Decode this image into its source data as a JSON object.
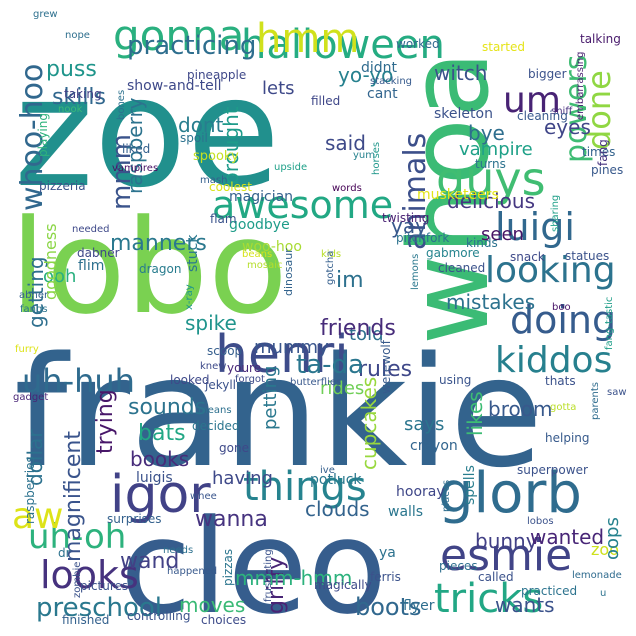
{
  "colors": {
    "background": "#ffffff",
    "palette": [
      "#440154",
      "#472d7b",
      "#3b528b",
      "#2c728e",
      "#21918c",
      "#28ae80",
      "#5ec962",
      "#addc30",
      "#fde725"
    ]
  },
  "words": [
    {
      "text": "frankie",
      "color": "#33638d"
    },
    {
      "text": "zoe",
      "color": "#21908d"
    },
    {
      "text": "lobo",
      "color": "#7ad151"
    },
    {
      "text": "cleo",
      "color": "#365d8d"
    },
    {
      "text": "whoa",
      "color": "#3bbb75"
    },
    {
      "text": "glorb",
      "color": "#2f6c8e"
    },
    {
      "text": "henri",
      "color": "#3e4c8a"
    },
    {
      "text": "igor",
      "color": "#414287"
    },
    {
      "text": "things",
      "color": "#26838f"
    },
    {
      "text": "gonna",
      "color": "#2ab07f"
    },
    {
      "text": "halloween",
      "color": "#25ac82"
    },
    {
      "text": "awesome",
      "color": "#22a884"
    },
    {
      "text": "guys",
      "color": "#40bd72"
    },
    {
      "text": "esmie",
      "color": "#414487"
    },
    {
      "text": "tricks",
      "color": "#22a785"
    },
    {
      "text": "looks",
      "color": "#46327e"
    },
    {
      "text": "doing",
      "color": "#365c8d"
    },
    {
      "text": "looking",
      "color": "#2c738e"
    },
    {
      "text": "luigi",
      "color": "#31688e"
    },
    {
      "text": "kiddos",
      "color": "#27808e"
    },
    {
      "text": "uh-huh",
      "color": "#2f6b8e"
    },
    {
      "text": "uh-oh",
      "color": "#2db27d"
    },
    {
      "text": "aw",
      "color": "#dde318"
    },
    {
      "text": "preschool",
      "color": "#2a788e"
    },
    {
      "text": "hmm",
      "color": "#d0e11c"
    },
    {
      "text": "um",
      "color": "#482374"
    },
    {
      "text": "done",
      "color": "#90d743"
    },
    {
      "text": "animals",
      "color": "#3c4f8a"
    },
    {
      "text": "powers",
      "color": "#3fbc73"
    },
    {
      "text": "whoo-hoo",
      "color": "#31688e"
    },
    {
      "text": "mmm",
      "color": "#3a538b"
    },
    {
      "text": "practicing",
      "color": "#2e6e8e"
    },
    {
      "text": "manners",
      "color": "#2a788e"
    },
    {
      "text": "skills",
      "color": "#31678e"
    },
    {
      "text": "puss",
      "color": "#1f958b"
    },
    {
      "text": "yo-yo",
      "color": "#26818e"
    },
    {
      "text": "witch",
      "color": "#3b528b"
    },
    {
      "text": "lets",
      "color": "#3e4989"
    },
    {
      "text": "raspberry",
      "color": "#2c738e"
    },
    {
      "text": "brought",
      "color": "#1e9b8a"
    },
    {
      "text": "dont",
      "color": "#287d8e"
    },
    {
      "text": "said",
      "color": "#3e4a89"
    },
    {
      "text": "bye",
      "color": "#2e6e8e"
    },
    {
      "text": "eyes",
      "color": "#404688"
    },
    {
      "text": "vampire",
      "color": "#1fa188"
    },
    {
      "text": "delicious",
      "color": "#453781"
    },
    {
      "text": "yay",
      "color": "#38588c"
    },
    {
      "text": "seen",
      "color": "#471365"
    },
    {
      "text": "im",
      "color": "#2d718e"
    },
    {
      "text": "mistakes",
      "color": "#2c728e"
    },
    {
      "text": "told",
      "color": "#2d708e"
    },
    {
      "text": "friends",
      "color": "#472c7a"
    },
    {
      "text": "rules",
      "color": "#3f4889"
    },
    {
      "text": "ta-da",
      "color": "#2a768e"
    },
    {
      "text": "broom",
      "color": "#38598c"
    },
    {
      "text": "rides",
      "color": "#70cf57"
    },
    {
      "text": "sounds",
      "color": "#2c738e"
    },
    {
      "text": "spike",
      "color": "#1f948c"
    },
    {
      "text": "mummy",
      "color": "#39558c"
    },
    {
      "text": "bats",
      "color": "#22a785"
    },
    {
      "text": "trying",
      "color": "#481769"
    },
    {
      "text": "magnificent",
      "color": "#3a548c"
    },
    {
      "text": "dollar",
      "color": "#2c718e"
    },
    {
      "text": "books",
      "color": "#472c7a"
    },
    {
      "text": "having",
      "color": "#3e4989"
    },
    {
      "text": "petting",
      "color": "#2a788e"
    },
    {
      "text": "cupcakes",
      "color": "#98d83e"
    },
    {
      "text": "says",
      "color": "#2b758e"
    },
    {
      "text": "likes",
      "color": "#3dbc74"
    },
    {
      "text": "wanna",
      "color": "#46337f"
    },
    {
      "text": "clouds",
      "color": "#33638d"
    },
    {
      "text": "bunny",
      "color": "#424086"
    },
    {
      "text": "wanted",
      "color": "#482677"
    },
    {
      "text": "wand",
      "color": "#424186"
    },
    {
      "text": "griffy",
      "color": "#482475"
    },
    {
      "text": "zoo",
      "color": "#cde11d"
    },
    {
      "text": "oops",
      "color": "#26828e"
    },
    {
      "text": "moves",
      "color": "#3aba76"
    },
    {
      "text": "mmm-hmm",
      "color": "#2db27d"
    },
    {
      "text": "boots",
      "color": "#31688e"
    },
    {
      "text": "wants",
      "color": "#3b528b"
    },
    {
      "text": "flyer",
      "color": "#2e6e8e"
    },
    {
      "text": "getting",
      "color": "#2e6f8e"
    },
    {
      "text": "ooh",
      "color": "#2ab07f"
    },
    {
      "text": "goodness",
      "color": "#8bd646"
    },
    {
      "text": "woo-hoo",
      "color": "#a8db34"
    },
    {
      "text": "goodbye",
      "color": "#1e9c89"
    },
    {
      "text": "magician",
      "color": "#34618d"
    },
    {
      "text": "flam",
      "color": "#3a538b"
    },
    {
      "text": "stuck",
      "color": "#2a788e"
    },
    {
      "text": "flim",
      "color": "#2d708e"
    },
    {
      "text": "dragon",
      "color": "#287c8e"
    },
    {
      "text": "dabner",
      "color": "#3f4788"
    },
    {
      "text": "mosaic",
      "color": "#b5de2b"
    },
    {
      "text": "beans",
      "color": "#d5e21a"
    },
    {
      "text": "dinosaur",
      "color": "#33638d"
    },
    {
      "text": "kids",
      "color": "#b8de29"
    },
    {
      "text": "gotcha",
      "color": "#355f8d"
    },
    {
      "text": "gabmore",
      "color": "#25848e"
    },
    {
      "text": "lemons",
      "color": "#2a788e"
    },
    {
      "text": "pitchfork",
      "color": "#2c728e"
    },
    {
      "text": "twisting",
      "color": "#482173"
    },
    {
      "text": "coolest",
      "color": "#dae319"
    },
    {
      "text": "mash",
      "color": "#34608d"
    },
    {
      "text": "words",
      "color": "#440154"
    },
    {
      "text": "upside",
      "color": "#1fa088"
    },
    {
      "text": "spooky",
      "color": "#c5e021"
    },
    {
      "text": "spoil",
      "color": "#2c728e"
    },
    {
      "text": "liked",
      "color": "#34618d"
    },
    {
      "text": "vampires",
      "color": "#471164"
    },
    {
      "text": "bones",
      "color": "#2c718e"
    },
    {
      "text": "pizzeria",
      "color": "#3a548c"
    },
    {
      "text": "nook",
      "color": "#38b977"
    },
    {
      "text": "playing",
      "color": "#2eb37c"
    },
    {
      "text": "taking",
      "color": "#424186"
    },
    {
      "text": "nope",
      "color": "#2e6f8e"
    },
    {
      "text": "grew",
      "color": "#2d708e"
    },
    {
      "text": "pineapple",
      "color": "#3f4889"
    },
    {
      "text": "show-and-tell",
      "color": "#3e4989"
    },
    {
      "text": "didnt",
      "color": "#2f6b8e"
    },
    {
      "text": "cant",
      "color": "#32658e"
    },
    {
      "text": "worked",
      "color": "#31688e"
    },
    {
      "text": "started",
      "color": "#e5e419"
    },
    {
      "text": "talking",
      "color": "#481a6c"
    },
    {
      "text": "bigger",
      "color": "#3b528b"
    },
    {
      "text": "stacking",
      "color": "#375b8d"
    },
    {
      "text": "embarrassing",
      "color": "#481f70"
    },
    {
      "text": "filled",
      "color": "#3f4788"
    },
    {
      "text": "skeleton",
      "color": "#3b528b"
    },
    {
      "text": "sniff",
      "color": "#46307e"
    },
    {
      "text": "cleaning",
      "color": "#38598c"
    },
    {
      "text": "yum",
      "color": "#26828e"
    },
    {
      "text": "horses",
      "color": "#1f978b"
    },
    {
      "text": "turns",
      "color": "#2c728e"
    },
    {
      "text": "times",
      "color": "#33638d"
    },
    {
      "text": "pines",
      "color": "#38598c"
    },
    {
      "text": "fang",
      "color": "#46327e"
    },
    {
      "text": "musketeers",
      "color": "#e2e418"
    },
    {
      "text": "snack",
      "color": "#3e4a89"
    },
    {
      "text": "kinds",
      "color": "#2c728e"
    },
    {
      "text": "cleaned",
      "color": "#3b528b"
    },
    {
      "text": "sharing",
      "color": "#1f9f88"
    },
    {
      "text": "statues",
      "color": "#3b528b"
    },
    {
      "text": "boo",
      "color": "#481467"
    },
    {
      "text": "fangs",
      "color": "#2b748e"
    },
    {
      "text": "abner",
      "color": "#34608d"
    },
    {
      "text": "needed",
      "color": "#3e4989"
    },
    {
      "text": "furry",
      "color": "#dde318"
    },
    {
      "text": "x-ray",
      "color": "#1f968b"
    },
    {
      "text": "scoop",
      "color": "#355e8d"
    },
    {
      "text": "knew",
      "color": "#3e4a89"
    },
    {
      "text": "youre",
      "color": "#482878"
    },
    {
      "text": "jekyll",
      "color": "#3b528b"
    },
    {
      "text": "butterflies",
      "color": "#38588c"
    },
    {
      "text": "fang-tastic",
      "color": "#1f9e89"
    },
    {
      "text": "thats",
      "color": "#3b528b"
    },
    {
      "text": "gotta",
      "color": "#bade28"
    },
    {
      "text": "parents",
      "color": "#2f6c8e"
    },
    {
      "text": "gadget",
      "color": "#482576"
    },
    {
      "text": "looked",
      "color": "#3e4989"
    },
    {
      "text": "forgot",
      "color": "#3e4c8a"
    },
    {
      "text": "werewolf",
      "color": "#375a8c"
    },
    {
      "text": "means",
      "color": "#2d708e"
    },
    {
      "text": "decided",
      "color": "#2b758e"
    },
    {
      "text": "saw",
      "color": "#3b528b"
    },
    {
      "text": "potluck",
      "color": "#2a788e"
    },
    {
      "text": "using",
      "color": "#3a548c"
    },
    {
      "text": "crayon",
      "color": "#32658e"
    },
    {
      "text": "spells",
      "color": "#287d8e"
    },
    {
      "text": "places",
      "color": "#2e6e8e"
    },
    {
      "text": "helping",
      "color": "#375a8c"
    },
    {
      "text": "raspberries",
      "color": "#2c728e"
    },
    {
      "text": "luigis",
      "color": "#3b528b"
    },
    {
      "text": "gone",
      "color": "#3e4989"
    },
    {
      "text": "ive",
      "color": "#355f8d"
    },
    {
      "text": "hooray",
      "color": "#3f4788"
    },
    {
      "text": "superpower",
      "color": "#3b528b"
    },
    {
      "text": "whee",
      "color": "#39558c"
    },
    {
      "text": "surprises",
      "color": "#34618d"
    },
    {
      "text": "walls",
      "color": "#2a768e"
    },
    {
      "text": "lobos",
      "color": "#3b528b"
    },
    {
      "text": "pizzas",
      "color": "#2b758e"
    },
    {
      "text": "frustrating",
      "color": "#3b528b"
    },
    {
      "text": "ya",
      "color": "#2c728e"
    },
    {
      "text": "pieces",
      "color": "#2e6f8e"
    },
    {
      "text": "called",
      "color": "#3b528b"
    },
    {
      "text": "lemonade",
      "color": "#2f6b8e"
    },
    {
      "text": "practiced",
      "color": "#2c738e"
    },
    {
      "text": "dr",
      "color": "#2c728e"
    },
    {
      "text": "pictures",
      "color": "#3b528b"
    },
    {
      "text": "needs",
      "color": "#2d718e"
    },
    {
      "text": "happened",
      "color": "#38598c"
    },
    {
      "text": "magically",
      "color": "#3e4a89"
    },
    {
      "text": "ferris",
      "color": "#3b528b"
    },
    {
      "text": "finished",
      "color": "#34618d"
    },
    {
      "text": "controlling",
      "color": "#3b528b"
    },
    {
      "text": "choices",
      "color": "#3e4c8a"
    },
    {
      "text": "zombie",
      "color": "#3b528b"
    },
    {
      "text": "u",
      "color": "#2c728e"
    }
  ]
}
